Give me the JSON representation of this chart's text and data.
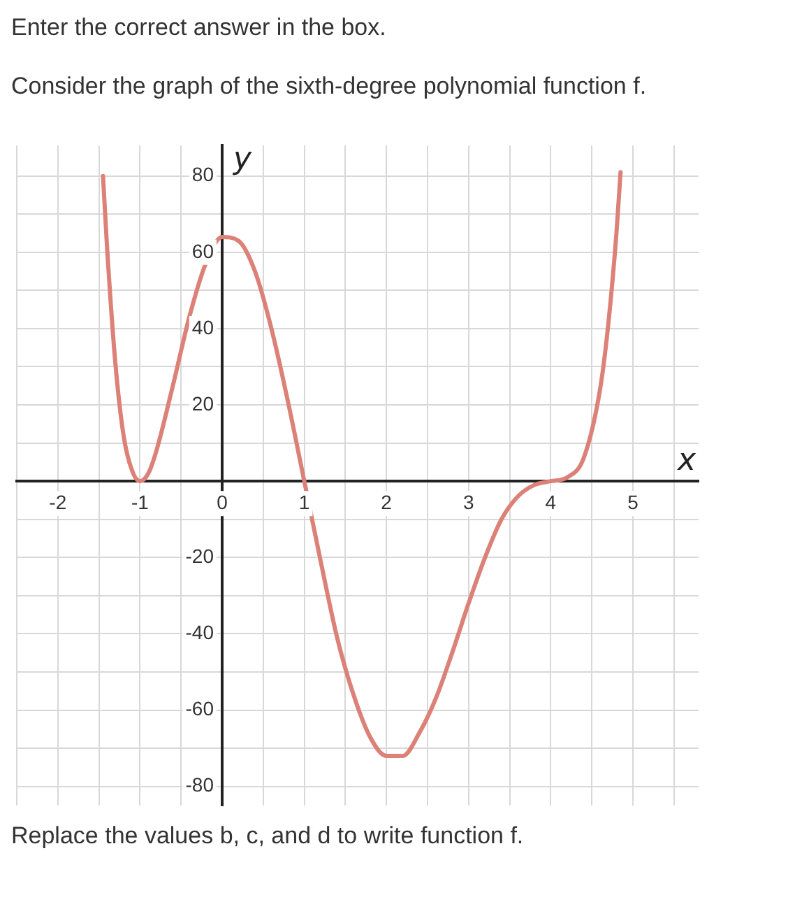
{
  "chart_data": {
    "type": "line",
    "title": "Consider the graph of the sixth-degree polynomial function f.",
    "annotations": [
      "Enter the correct answer in the box.",
      "Replace the values b, c, and d to write function f."
    ],
    "xlabel": "x",
    "ylabel": "y",
    "x": [
      -1.45,
      -1.4,
      -1.3,
      -1.2,
      -1.1,
      -1,
      -0.9,
      -0.8,
      -0.6,
      -0.4,
      -0.2,
      0,
      0.2,
      0.4,
      0.6,
      0.8,
      1,
      1.2,
      1.4,
      1.6,
      1.8,
      2,
      2.2,
      2.4,
      2.6,
      2.8,
      3,
      3.2,
      3.4,
      3.6,
      3.8,
      4,
      4.2,
      4.4,
      4.6,
      4.7,
      4.8,
      4.85
    ],
    "series": [
      {
        "color": "#dc8178",
        "values": [
          80,
          61,
          31,
          12,
          3,
          0,
          2,
          8,
          25,
          43,
          57,
          64,
          63,
          55,
          40,
          21,
          0,
          -21,
          -41,
          -56,
          -67,
          -72,
          -72,
          -66,
          -57,
          -45,
          -32,
          -20,
          -10,
          -4,
          -1,
          0,
          1,
          6,
          24,
          41,
          65,
          81
        ]
      }
    ],
    "xlim": [
      -2.5,
      5.8
    ],
    "ylim": [
      -85,
      88
    ],
    "xticks": [
      {
        "value": -2.5,
        "label": null
      },
      -2,
      {
        "value": -1.5,
        "label": null
      },
      -1,
      {
        "value": -0.5,
        "label": null
      },
      0,
      {
        "value": 0.5,
        "label": null
      },
      1,
      {
        "value": 1.5,
        "label": null
      },
      2,
      {
        "value": 2.5,
        "label": null
      },
      3,
      {
        "value": 3.5,
        "label": null
      },
      4,
      {
        "value": 4.5,
        "label": null
      },
      5,
      {
        "value": 5.5,
        "label": null
      }
    ],
    "yticks": [
      -80,
      {
        "value": -70,
        "label": null
      },
      -60,
      {
        "value": -50,
        "label": null
      },
      -40,
      {
        "value": -30,
        "label": null
      },
      -20,
      {
        "value": -10,
        "label": null
      },
      {
        "value": 0,
        "label": null
      },
      {
        "value": 10,
        "label": null
      },
      20,
      {
        "value": 30,
        "label": null
      },
      40,
      {
        "value": 50,
        "label": null
      },
      60,
      {
        "value": 70,
        "label": null
      },
      80
    ],
    "grid": true,
    "marker": "none",
    "line_style": "solid"
  }
}
